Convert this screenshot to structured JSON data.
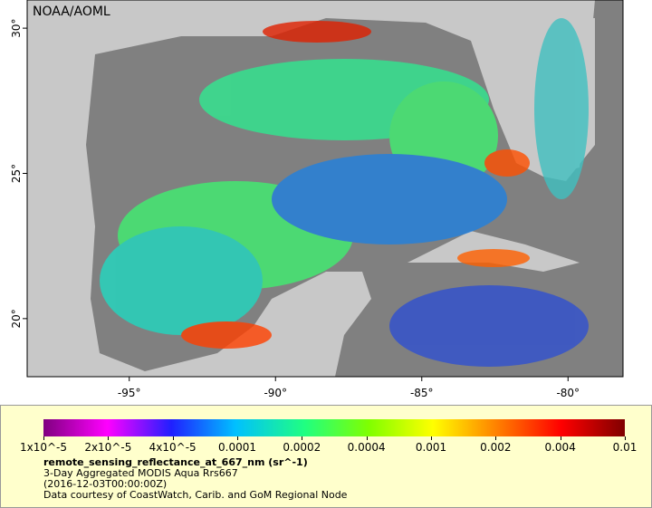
{
  "map": {
    "credit": "NOAA/AOML",
    "lon_ticks": [
      {
        "value": -95,
        "label": "-95°"
      },
      {
        "value": -90,
        "label": "-90°"
      },
      {
        "value": -85,
        "label": "-85°"
      },
      {
        "value": -80,
        "label": "-80°"
      }
    ],
    "lat_ticks": [
      {
        "value": 30,
        "label": "30°"
      },
      {
        "value": 25,
        "label": "25°"
      },
      {
        "value": 20,
        "label": "20°"
      }
    ],
    "xlim": [
      -98.49,
      -78.12
    ],
    "ylim": [
      18.0,
      30.97
    ]
  },
  "colorbar": {
    "ticks": [
      {
        "value": 1e-05,
        "label": "1x10^-5"
      },
      {
        "value": 2e-05,
        "label": "2x10^-5"
      },
      {
        "value": 4e-05,
        "label": "4x10^-5"
      },
      0.0001,
      0.0002,
      0.0004,
      0.001,
      0.002,
      0.004,
      0.01
    ]
  },
  "caption": {
    "variable": "remote_sensing_reflectance_at_667_nm (sr^-1)",
    "lines": [
      "3-Day Aggregated MODIS Aqua Rrs667",
      "(2016-12-03T00:00:00Z)",
      "Data courtesy of CoastWatch, Carib. and GoM Regional Node"
    ]
  }
}
